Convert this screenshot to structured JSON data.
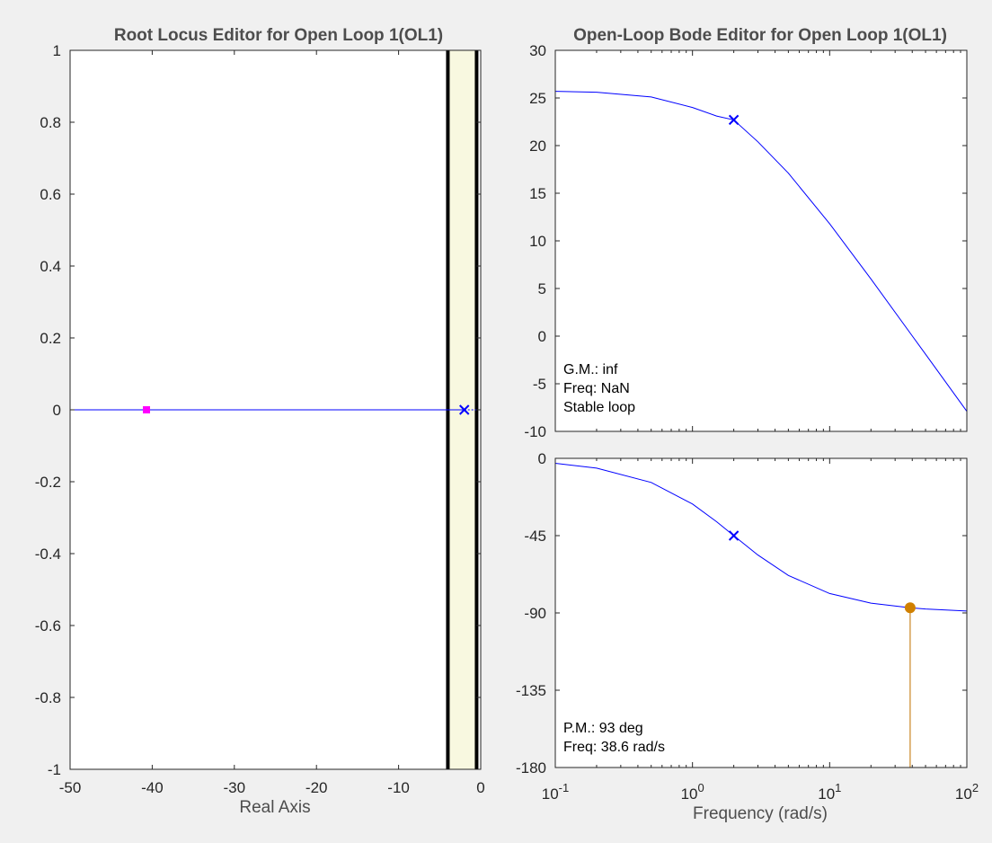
{
  "chart_data": [
    {
      "type": "line",
      "title": "Root Locus Editor for Open Loop 1(OL1)",
      "xlabel": "Real Axis",
      "ylabel": "",
      "xlim": [
        -50,
        0
      ],
      "ylim": [
        -1,
        1
      ],
      "xticks": [
        "-50",
        "-40",
        "-30",
        "-20",
        "-10",
        "0"
      ],
      "yticks": [
        "1",
        "0.8",
        "0.6",
        "0.4",
        "0.2",
        "0",
        "-0.2",
        "-0.4",
        "-0.6",
        "-0.8",
        "-1"
      ],
      "locus": {
        "x": [
          -50,
          -2
        ],
        "y": [
          0,
          0
        ]
      },
      "pole": {
        "x": -2,
        "y": 0
      },
      "closed_loop_pole": {
        "x": -40.7,
        "y": 0
      },
      "stability_region_boundaries": [
        -4,
        -0.5
      ],
      "colors": {
        "locus": "#0000ff",
        "pole": "#0000ff",
        "closed_loop_pole": "#ff00ff",
        "region": "#f8f8e0",
        "boundary": "#000000"
      }
    },
    {
      "type": "line",
      "title": "Open-Loop Bode Editor for Open Loop 1(OL1)",
      "ylabel": "",
      "x_scale": "log",
      "xlim": [
        0.1,
        100
      ],
      "ylim": [
        -10,
        30
      ],
      "yticks": [
        "30",
        "25",
        "20",
        "15",
        "10",
        "5",
        "0",
        "-5",
        "-10"
      ],
      "series": [
        {
          "x": [
            0.1,
            0.2,
            0.5,
            1,
            1.5,
            2,
            3,
            5,
            10,
            20,
            50,
            100
          ],
          "y": [
            25.7,
            25.6,
            25.1,
            24.0,
            23.1,
            22.7,
            20.4,
            17.1,
            11.8,
            6.0,
            -1.9,
            -7.9
          ]
        }
      ],
      "marker": {
        "x": 2,
        "y": 22.7
      },
      "annotations": [
        "G.M.: inf",
        "Freq: NaN",
        "Stable loop"
      ],
      "colors": {
        "line": "#0000ff"
      }
    },
    {
      "type": "line",
      "xlabel": "Frequency (rad/s)",
      "ylabel": "",
      "x_scale": "log",
      "xlim": [
        0.1,
        100
      ],
      "ylim": [
        -180,
        0
      ],
      "xticks": [
        "0.1",
        "1",
        "10",
        "100"
      ],
      "yticks": [
        "0",
        "-45",
        "-90",
        "-135",
        "-180"
      ],
      "series": [
        {
          "x": [
            0.1,
            0.2,
            0.5,
            1,
            1.5,
            2,
            3,
            5,
            10,
            20,
            38.6,
            50,
            100
          ],
          "y": [
            -2.9,
            -5.7,
            -14.0,
            -26.6,
            -36.9,
            -45.0,
            -56.3,
            -68.2,
            -78.7,
            -84.3,
            -87.0,
            -87.7,
            -88.9
          ]
        }
      ],
      "marker": {
        "x": 2,
        "y": -45
      },
      "phase_margin_point": {
        "x": 38.6,
        "y": -87
      },
      "reference_line": -180,
      "annotations": [
        "P.M.: 93 deg",
        "Freq: 38.6 rad/s"
      ],
      "colors": {
        "line": "#0000ff",
        "margin": "#d08000",
        "margin_line": "#d4a050"
      }
    }
  ]
}
